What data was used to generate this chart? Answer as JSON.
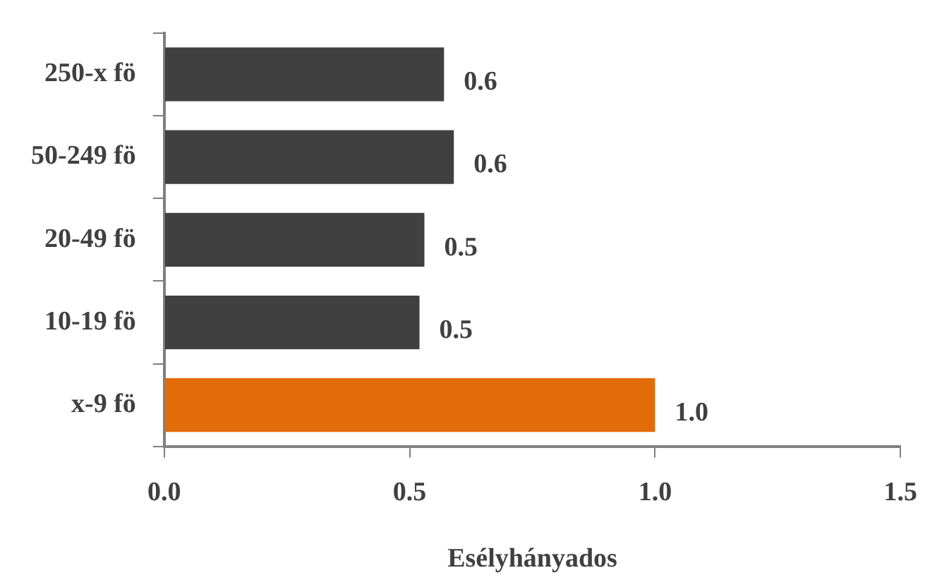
{
  "chart_data": {
    "type": "bar",
    "orientation": "horizontal",
    "xlabel": "Esélyhányados",
    "categories": [
      "250-x fö",
      "50-249 fö",
      "20-49 fö",
      "10-19 fö",
      "x-9 fö"
    ],
    "values": [
      0.57,
      0.59,
      0.53,
      0.52,
      1.0
    ],
    "colors": [
      "#404040",
      "#404040",
      "#404040",
      "#404040",
      "#e36c0a"
    ],
    "value_labels": [
      "0.6",
      "0.6",
      "0.5",
      "0.5",
      "1.0"
    ],
    "xlim": [
      0,
      1.5
    ],
    "xticks": [
      {
        "value": 0,
        "label": "0.0"
      },
      {
        "value": 0.5,
        "label": "0.5"
      },
      {
        "value": 1,
        "label": "1.0"
      },
      {
        "value": 1.5,
        "label": "1.5"
      }
    ],
    "grid": false,
    "legend": false
  }
}
